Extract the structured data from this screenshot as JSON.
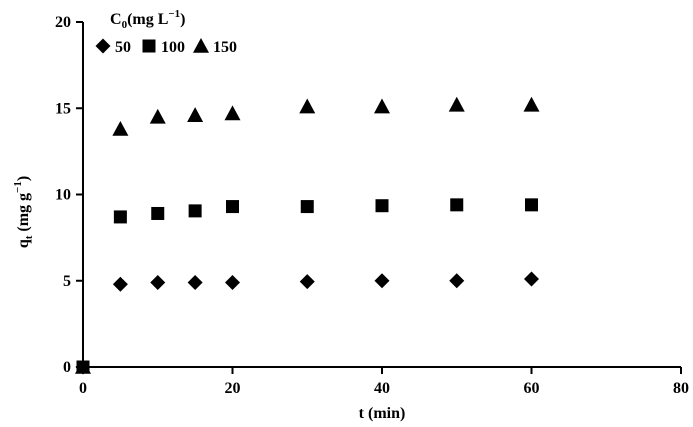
{
  "chart_data": {
    "type": "scatter",
    "xlabel": "t (min)",
    "ylabel": {
      "main": "q",
      "sub": "t",
      "units": " (mg g",
      "sup": "−1",
      "close": ")"
    },
    "xlim": [
      0,
      80
    ],
    "ylim": [
      0,
      20
    ],
    "xticks": [
      "0",
      "20",
      "40",
      "60",
      "80"
    ],
    "yticks": [
      "0",
      "5",
      "10",
      "15",
      "20"
    ],
    "grid": false,
    "legend": {
      "title": {
        "main": "C",
        "sub": "0",
        "units": "(mg L",
        "sup": "−1",
        "close": ")"
      },
      "placement": "top-left"
    },
    "series": [
      {
        "name": "50",
        "marker": "diamond",
        "points": [
          [
            0,
            0
          ],
          [
            5,
            4.8
          ],
          [
            10,
            4.9
          ],
          [
            15,
            4.9
          ],
          [
            20,
            4.9
          ],
          [
            30,
            4.95
          ],
          [
            40,
            5.0
          ],
          [
            50,
            5.0
          ],
          [
            60,
            5.1
          ]
        ]
      },
      {
        "name": "100",
        "marker": "square",
        "points": [
          [
            0,
            0
          ],
          [
            5,
            8.7
          ],
          [
            10,
            8.9
          ],
          [
            15,
            9.05
          ],
          [
            20,
            9.3
          ],
          [
            30,
            9.3
          ],
          [
            40,
            9.35
          ],
          [
            50,
            9.4
          ],
          [
            60,
            9.4
          ]
        ]
      },
      {
        "name": "150",
        "marker": "triangle",
        "points": [
          [
            0,
            0
          ],
          [
            5,
            13.8
          ],
          [
            10,
            14.5
          ],
          [
            15,
            14.6
          ],
          [
            20,
            14.7
          ],
          [
            30,
            15.1
          ],
          [
            40,
            15.1
          ],
          [
            50,
            15.2
          ],
          [
            60,
            15.2
          ]
        ]
      }
    ],
    "colors": {
      "marker": "#000000",
      "axis": "#000000",
      "background": "#ffffff"
    }
  }
}
